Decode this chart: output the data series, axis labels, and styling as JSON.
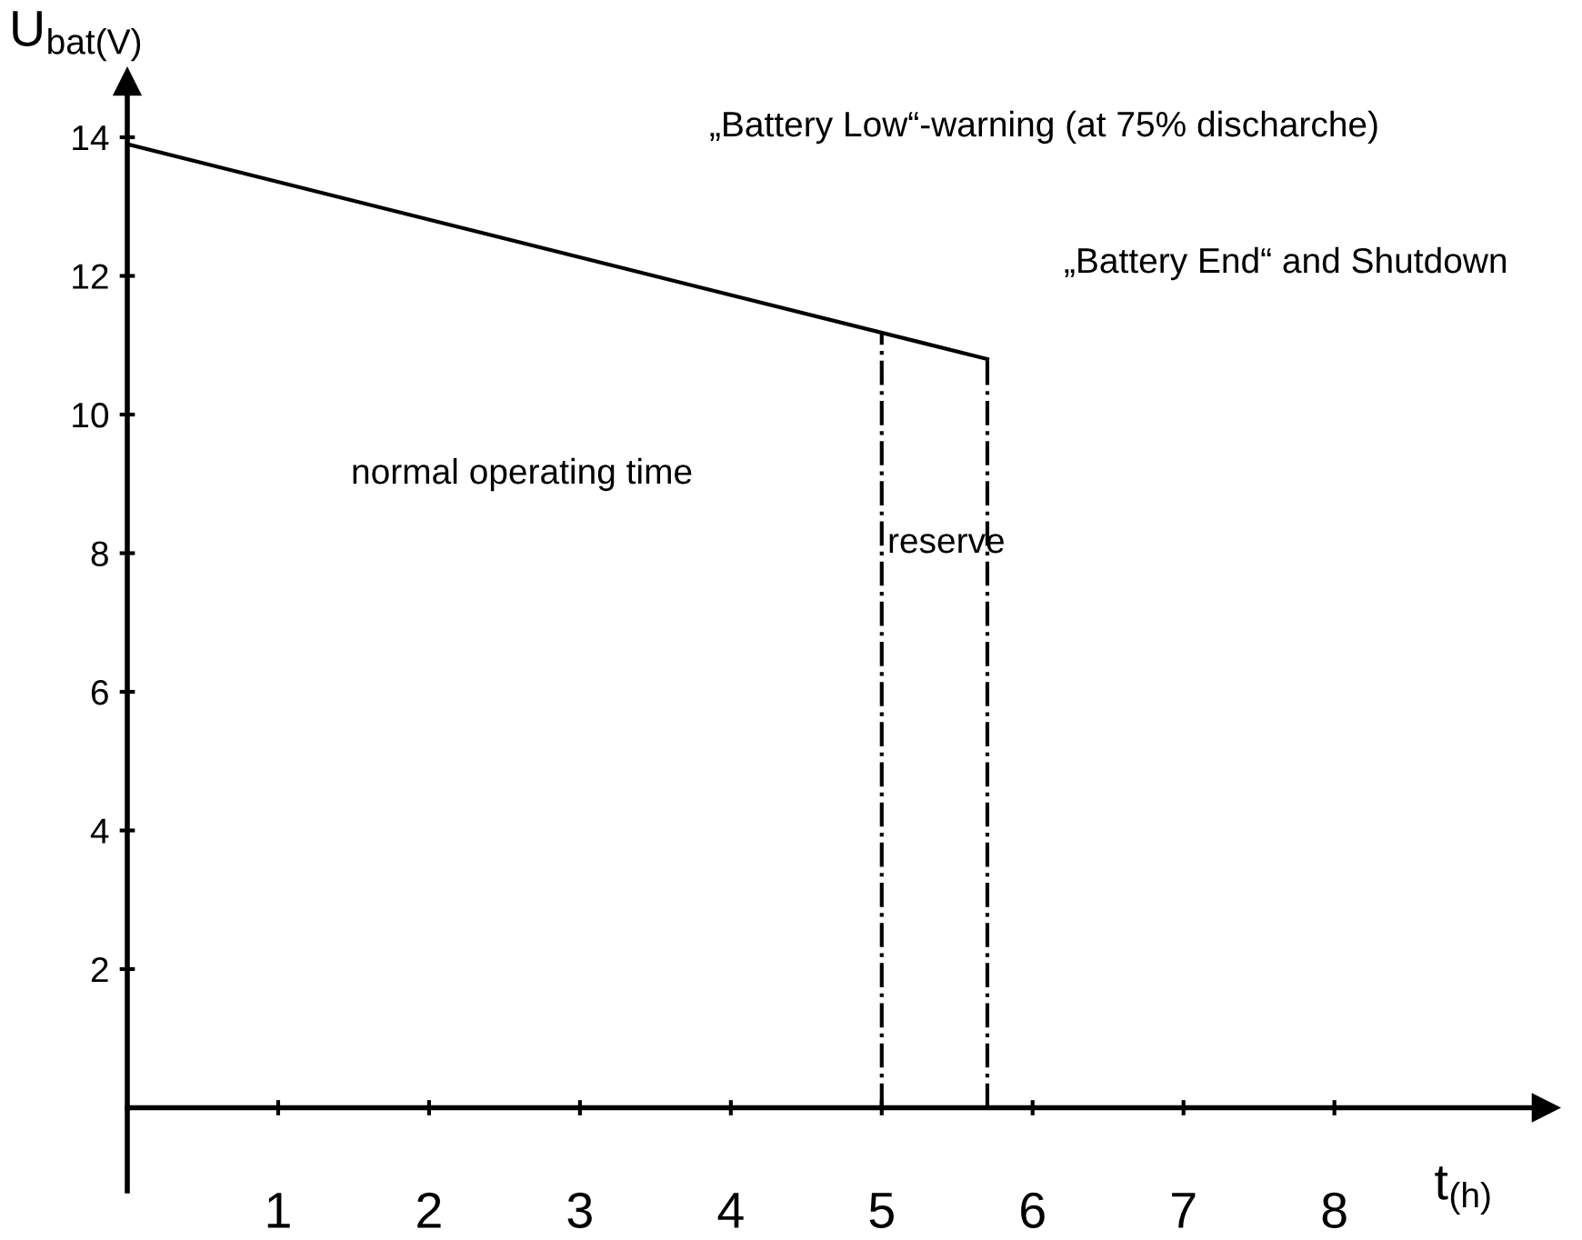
{
  "chart_data": {
    "type": "line",
    "xlabel": "t$_{(h)}$",
    "ylabel": "U$_{bat(V)}$",
    "series": [
      {
        "color": "#000000",
        "x": [
          0,
          5.7
        ],
        "values": [
          13.9,
          10.8
        ],
        "line_style": "solid"
      }
    ],
    "ref_lines": [
      {
        "axis": "x",
        "value": 5,
        "color": "#000000",
        "line_style": "dashdot"
      },
      {
        "axis": "x",
        "value": 5.7,
        "color": "#000000",
        "line_style": "dashdot"
      }
    ],
    "annotations": [
      "„Battery Low“-warning (at 75% discharche)",
      "„Battery End“ and Shutdown",
      "normal operating time",
      "reserve"
    ],
    "xlim": [
      0,
      9.4
    ],
    "ylim": [
      -1.2,
      14.8
    ],
    "xticks": [
      1,
      2,
      3,
      4,
      5,
      6,
      7,
      8
    ],
    "yticks": [
      2,
      4,
      6,
      8,
      10,
      12,
      14
    ],
    "grid": false,
    "marker": "none"
  }
}
